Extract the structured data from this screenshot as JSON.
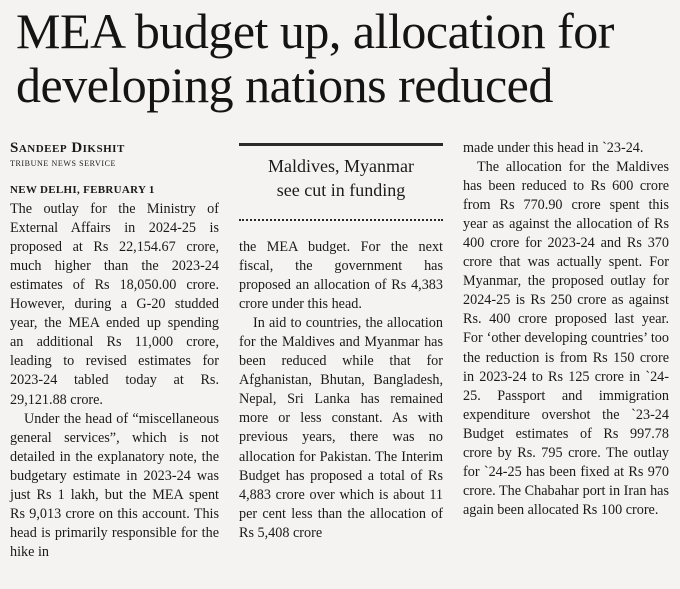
{
  "headline": {
    "line1": "MEA budget up, allocation for",
    "line2": "developing nations reduced"
  },
  "byline": "Sandeep Dikshit",
  "service": "TRIBUNE NEWS SERVICE",
  "dateline": "NEW DELHI, FEBRUARY 1",
  "callout": {
    "line1": "Maldives, Myanmar",
    "line2": "see cut in funding"
  },
  "col1": {
    "p1": "The outlay for the Ministry of External Affairs in 2024-25 is proposed at Rs 22,154.67 crore, much higher than the 2023-24 estimates of Rs 18,050.00 crore. However, during a G-20 studded year, the MEA ended up spending an additional Rs 11,000 crore, leading to revised estimates for 2023-24 tabled today at Rs. 29,121.88 crore.",
    "p2": "Under the head of “miscellaneous general services”, which is not detailed in the explanatory note, the budgetary estimate in 2023-24 was just Rs 1 lakh, but the MEA spent Rs 9,013 crore on this account. This head is primarily responsible for the hike in"
  },
  "col2": {
    "p1": "the MEA budget. For the next fiscal, the government has proposed an allocation of Rs 4,383 crore under this head.",
    "p2": "In aid to countries, the allocation for the Maldives and Myanmar has been reduced while that for Afghanistan, Bhutan, Bangladesh, Nepal, Sri Lanka has remained more or less constant. As with previous years, there was no allocation for Pakistan. The Interim Budget has proposed a total of Rs 4,883 crore over which is about 11 per cent less than the allocation of Rs 5,408 crore"
  },
  "col3": {
    "p1": "made under this head in `23-24.",
    "p2": "The allocation for the Maldives has been reduced to Rs 600 crore from Rs 770.90 crore spent this year as against the allocation of Rs 400 crore for 2023-24 and Rs 370 crore that was actually spent. For Myanmar, the proposed outlay for 2024-25 is Rs 250 crore as against Rs. 400 crore proposed last year. For ‘other developing countries’ too the reduction is from Rs 150 crore in 2023-24 to Rs 125 crore in `24-25. Passport and immigration expenditure overshot the `23-24 Budget estimates of Rs 997.78 crore by Rs. 795 crore. The outlay for `24-25 has been fixed at Rs 970 crore. The Chabahar port in Iran has again been allocated Rs 100 crore."
  }
}
